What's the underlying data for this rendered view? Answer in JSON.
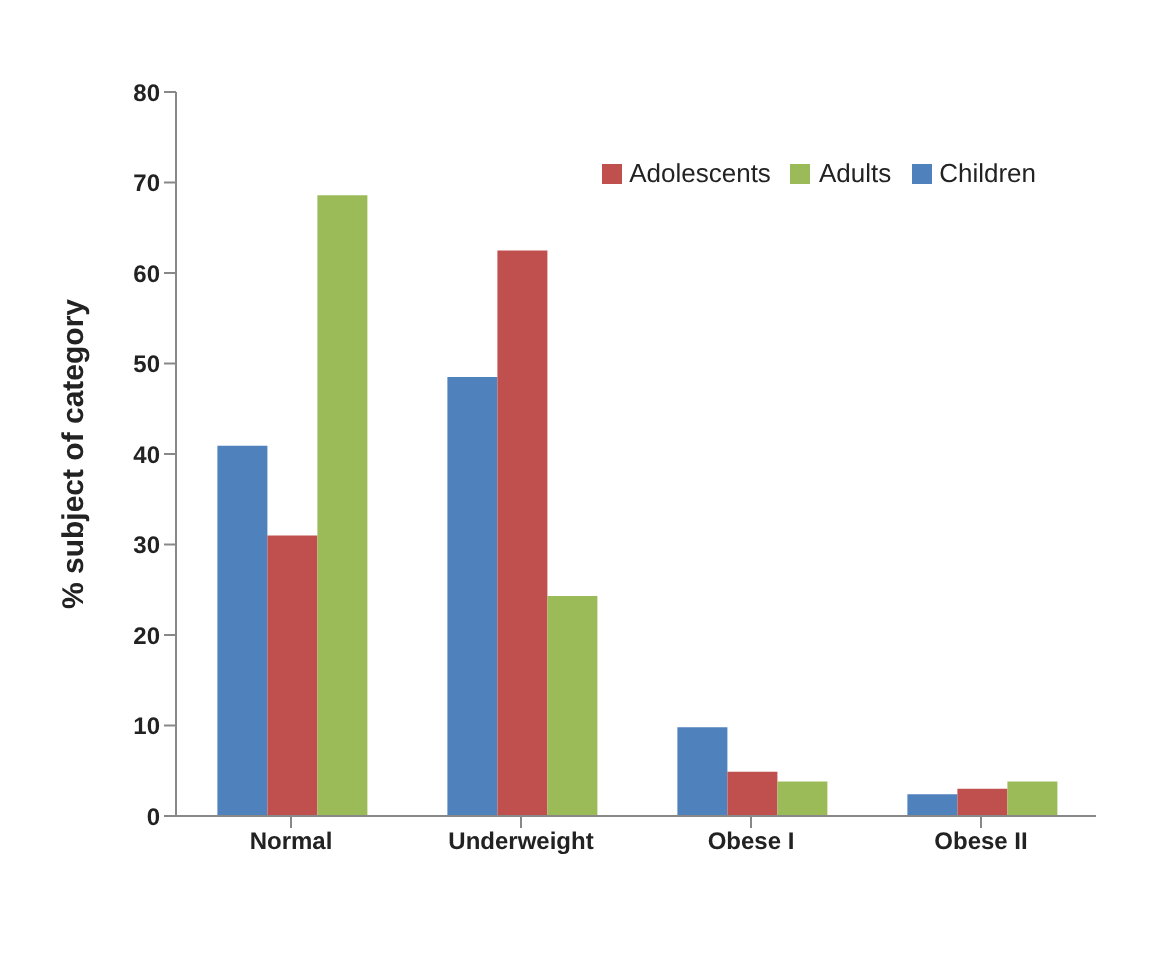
{
  "chart_data": {
    "type": "bar",
    "ylabel": "% subject of category",
    "categories": [
      "Normal",
      "Underweight",
      "Obese I",
      "Obese II"
    ],
    "series": [
      {
        "name": "Children",
        "color": "#4f81bd",
        "values": [
          40.9,
          48.5,
          9.8,
          2.4
        ]
      },
      {
        "name": "Adolescents",
        "color": "#c0504d",
        "values": [
          31.0,
          62.5,
          4.9,
          3.0
        ]
      },
      {
        "name": "Adults",
        "color": "#9bbb59",
        "values": [
          68.6,
          24.3,
          3.8,
          3.8
        ]
      }
    ],
    "ylim": [
      0,
      80
    ],
    "yticks": [
      0,
      10,
      20,
      30,
      40,
      50,
      60,
      70,
      80
    ],
    "grid": false,
    "legend": "top right"
  }
}
